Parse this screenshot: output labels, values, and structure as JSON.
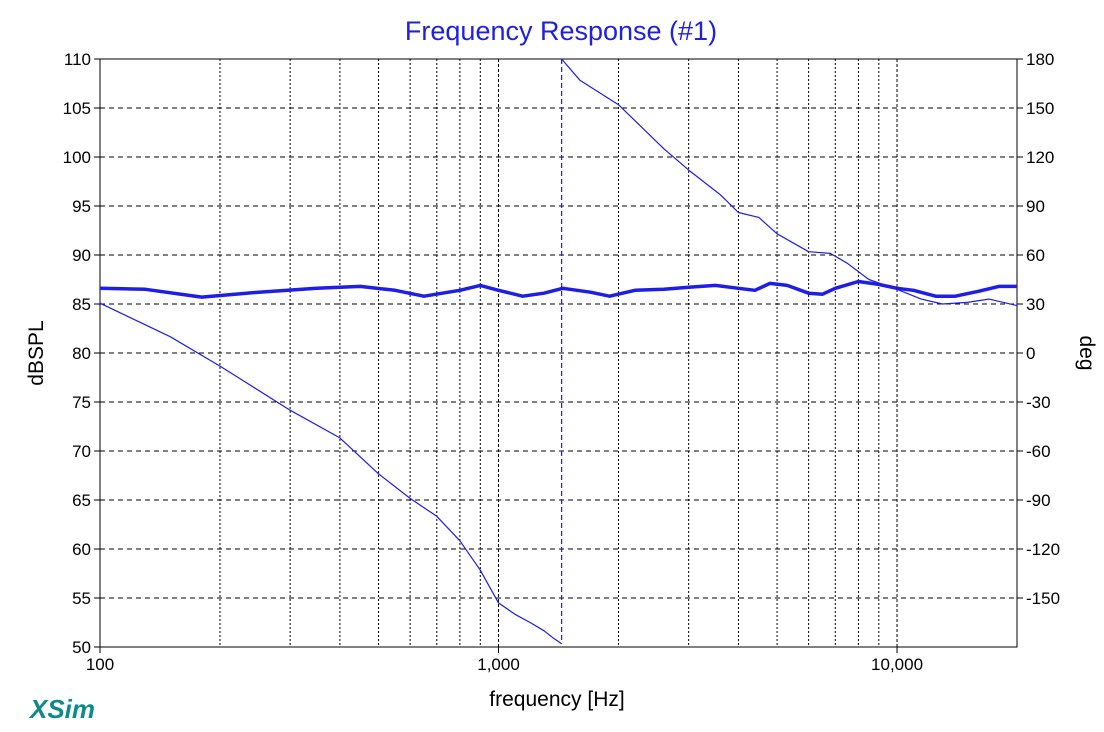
{
  "app": {
    "brand": "XSim"
  },
  "colors": {
    "trace": "#1e1ee6",
    "title": "#2020e0",
    "brand": "#0e8a8a"
  },
  "chart_data": {
    "type": "line",
    "title": "Frequency Response (#1)",
    "xlabel": "frequency [Hz]",
    "ylabel": "dBSPL",
    "y2label": "deg",
    "xscale": "log",
    "xlim": [
      100,
      20000
    ],
    "ylim": [
      50,
      110
    ],
    "y2lim": [
      -180,
      180
    ],
    "grid": true,
    "x_ticks": [
      100,
      1000,
      10000
    ],
    "x_tick_labels": [
      "100",
      "1,000",
      "10,000"
    ],
    "y_ticks": [
      50,
      55,
      60,
      65,
      70,
      75,
      80,
      85,
      90,
      95,
      100,
      105,
      110
    ],
    "y_tick_labels": [
      "50",
      "55",
      "60",
      "65",
      "70",
      "75",
      "80",
      "85",
      "90",
      "95",
      "100",
      "105",
      "110"
    ],
    "y2_ticks": [
      -150,
      -120,
      -90,
      -60,
      -30,
      0,
      30,
      60,
      90,
      120,
      150,
      180
    ],
    "y2_tick_labels": [
      "-150",
      "-120",
      "-90",
      "-60",
      "-30",
      "0",
      "30",
      "60",
      "90",
      "120",
      "150",
      "180"
    ],
    "series": [
      {
        "axis": "left",
        "x": [
          100,
          130,
          180,
          250,
          350,
          450,
          550,
          650,
          800,
          900,
          1000,
          1150,
          1300,
          1450,
          1700,
          1900,
          2200,
          2600,
          3000,
          3500,
          4000,
          4400,
          4800,
          5300,
          6000,
          6500,
          7000,
          8000,
          9000,
          10000,
          11000,
          12500,
          14000,
          16000,
          18000,
          20000
        ],
        "y": [
          86.6,
          86.5,
          85.7,
          86.2,
          86.6,
          86.8,
          86.4,
          85.8,
          86.4,
          86.9,
          86.4,
          85.8,
          86.1,
          86.6,
          86.2,
          85.8,
          86.4,
          86.5,
          86.7,
          86.9,
          86.6,
          86.4,
          87.1,
          86.9,
          86.1,
          86.0,
          86.6,
          87.3,
          87.0,
          86.6,
          86.4,
          85.8,
          85.8,
          86.3,
          86.8,
          86.8
        ]
      },
      {
        "axis": "right",
        "segments": [
          {
            "x": [
              100,
              150,
              200,
              300,
              400,
              500,
              600,
              700,
              800,
              900,
              1000,
              1100,
              1200,
              1300,
              1380,
              1440
            ],
            "y": [
              30.5,
              10,
              -8,
              -35,
              -52,
              -74,
              -89,
              -100,
              -115,
              -133,
              -153,
              -160,
              -165,
              -170,
              -175,
              -178
            ]
          },
          {
            "x": [
              1440,
              1600,
              2000,
              2600,
              3000,
              3600,
              4000,
              4500,
              5000,
              6000,
              6800,
              7500,
              8500,
              10000,
              11500,
              13000,
              15000,
              17000,
              20000
            ],
            "y": [
              180,
              167,
              152,
              125,
              112,
              97,
              86,
              83,
              73,
              62,
              61,
              55,
              45,
              39,
              33,
              30,
              31,
              33,
              29
            ]
          }
        ]
      }
    ]
  }
}
